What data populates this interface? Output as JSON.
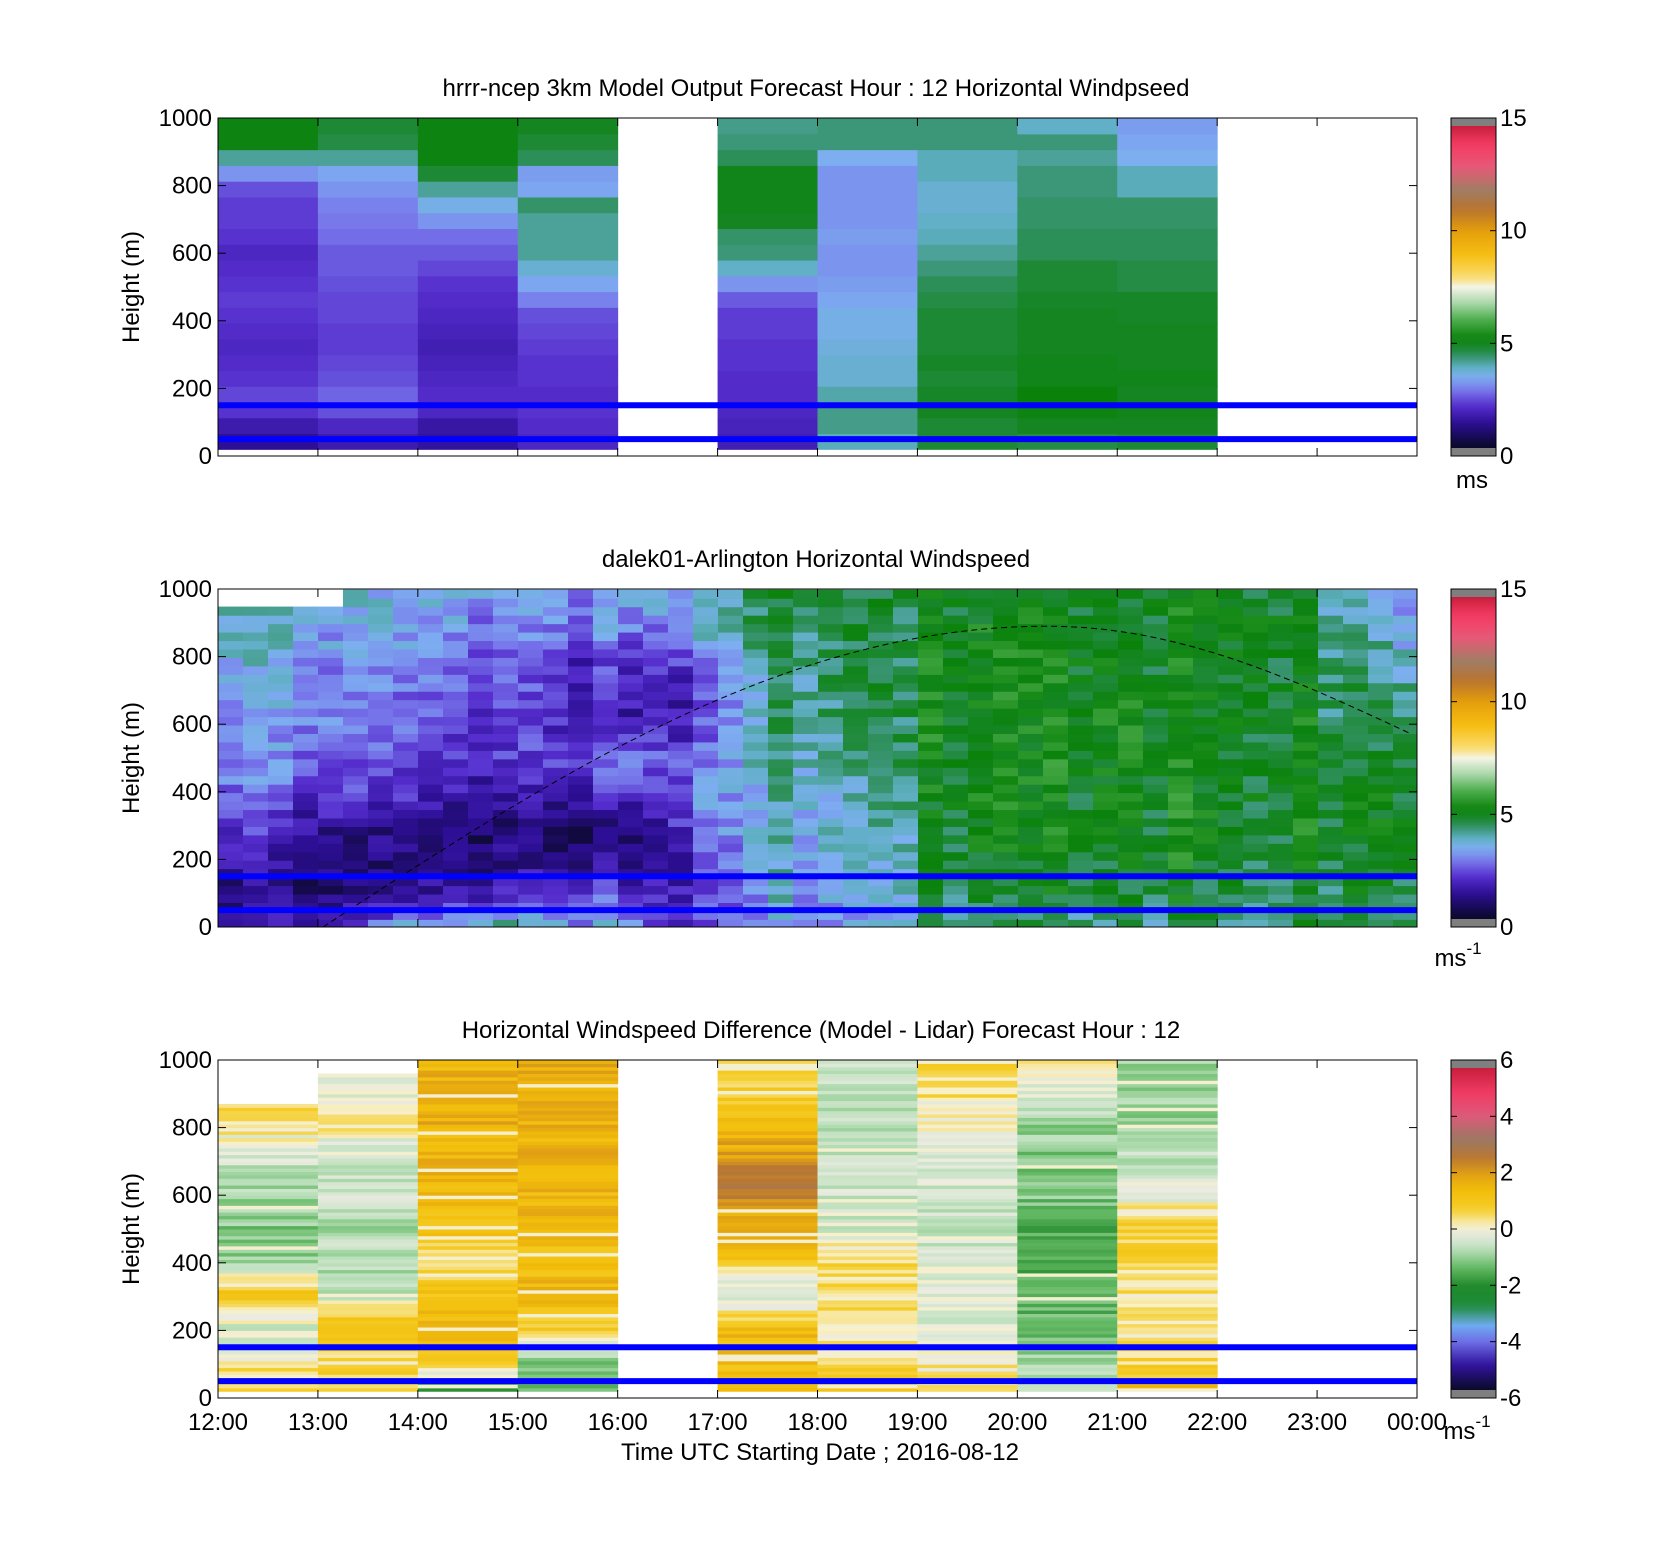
{
  "chart_data": [
    {
      "type": "heatmap",
      "title": "hrrr-ncep 3km Model Output   Forecast Hour : 12 Horizontal Windpseed",
      "ylabel": "Height (m)",
      "ylim": [
        0,
        1000
      ],
      "yticks": [
        "0",
        "200",
        "400",
        "600",
        "800",
        "1000"
      ],
      "xlim_hours": [
        12,
        24
      ],
      "colorbar": {
        "min": 0,
        "max": 15,
        "ticks": [
          "0",
          "5",
          "10",
          "15"
        ],
        "unit": "ms"
      },
      "colormap": "windspeed",
      "reference_lines_m": [
        150,
        50
      ],
      "missing_columns": [
        "16:00-17:00",
        "22:00-00:00"
      ],
      "columns": [
        {
          "t": "12:00",
          "h_top": 1000,
          "values": [
            1.2,
            1.5,
            2.0,
            2.2,
            2.0,
            1.9,
            1.8,
            1.9,
            2.0,
            2.1,
            2.0,
            1.9,
            1.8,
            2.0,
            2.1,
            2.1,
            2.3,
            3.0,
            4.0,
            5.0,
            5.0
          ]
        },
        {
          "t": "13:00",
          "h_top": 1000,
          "values": [
            1.5,
            1.8,
            2.3,
            2.5,
            2.3,
            2.2,
            2.1,
            2.1,
            2.2,
            2.2,
            2.3,
            2.4,
            2.4,
            2.6,
            2.7,
            2.8,
            3.0,
            3.2,
            4.0,
            4.5,
            4.6
          ]
        },
        {
          "t": "14:00",
          "h_top": 1000,
          "values": [
            1.3,
            1.4,
            1.8,
            1.9,
            1.8,
            1.7,
            1.6,
            1.7,
            1.8,
            1.9,
            2.0,
            2.2,
            2.4,
            2.6,
            3.0,
            3.4,
            4.0,
            4.6,
            5.0,
            5.0,
            5.0
          ]
        },
        {
          "t": "15:00",
          "h_top": 1000,
          "values": [
            1.8,
            1.9,
            2.0,
            1.9,
            2.0,
            2.0,
            2.1,
            2.2,
            2.3,
            2.8,
            3.2,
            3.6,
            4.0,
            4.0,
            4.0,
            4.3,
            3.2,
            3.1,
            4.4,
            4.6,
            4.8
          ]
        },
        {
          "t": "17:00",
          "h_top": 1000,
          "values": [
            1.6,
            1.7,
            1.8,
            1.9,
            1.9,
            2.0,
            2.0,
            2.1,
            2.1,
            2.4,
            3.0,
            3.7,
            4.2,
            4.3,
            4.8,
            4.9,
            4.9,
            4.9,
            4.4,
            4.2,
            4.1
          ]
        },
        {
          "t": "18:00",
          "h_top": 1000,
          "values": [
            3.8,
            4.1,
            4.1,
            3.9,
            3.6,
            3.6,
            3.5,
            3.4,
            3.4,
            3.2,
            3.1,
            3.0,
            3.0,
            3.1,
            3.0,
            3.0,
            3.0,
            3.0,
            3.3,
            4.2,
            4.2
          ]
        },
        {
          "t": "19:00",
          "h_top": 1000,
          "values": [
            4.6,
            4.6,
            4.8,
            4.7,
            4.6,
            4.7,
            4.6,
            4.6,
            4.6,
            4.5,
            4.4,
            4.2,
            4.0,
            3.8,
            3.7,
            3.6,
            3.6,
            3.8,
            3.8,
            4.2,
            4.2
          ]
        },
        {
          "t": "20:00",
          "h_top": 1000,
          "values": [
            4.5,
            4.8,
            5.0,
            5.1,
            4.9,
            4.9,
            4.8,
            4.8,
            4.8,
            4.7,
            4.6,
            4.6,
            4.4,
            4.4,
            4.3,
            4.3,
            4.2,
            4.2,
            4.0,
            4.2,
            3.7
          ]
        },
        {
          "t": "21:00",
          "h_top": 1000,
          "values": [
            4.6,
            4.8,
            4.9,
            4.8,
            4.9,
            4.8,
            4.8,
            4.8,
            4.7,
            4.7,
            4.5,
            4.5,
            4.4,
            4.4,
            4.3,
            4.3,
            3.8,
            3.8,
            3.3,
            3.2,
            3.1
          ]
        }
      ]
    },
    {
      "type": "heatmap",
      "title": "dalek01-Arlington  Horizontal Windspeed",
      "ylabel": "Height (m)",
      "ylim": [
        0,
        1000
      ],
      "yticks": [
        "0",
        "200",
        "400",
        "600",
        "800",
        "1000"
      ],
      "xlim_hours": [
        12,
        24
      ],
      "colorbar": {
        "min": 0,
        "max": 15,
        "ticks": [
          "0",
          "5",
          "10",
          "15"
        ],
        "unit": "ms-1"
      },
      "colormap": "windspeed",
      "reference_lines_m": [
        150,
        50
      ],
      "data_end_hour": 23.95,
      "anchor_heights_m": [
        0,
        100,
        200,
        300,
        400,
        500,
        600,
        700,
        800,
        900,
        1000
      ],
      "time_anchors": [
        {
          "hour": 12.0,
          "values": [
            1.0,
            0.9,
            1.4,
            2.2,
            2.6,
            2.8,
            3.0,
            3.2,
            3.5,
            3.6,
            3.6
          ]
        },
        {
          "hour": 13.0,
          "values": [
            1.5,
            1.0,
            0.9,
            1.5,
            2.3,
            2.7,
            3.0,
            3.0,
            3.2,
            3.4,
            3.8
          ]
        },
        {
          "hour": 14.0,
          "values": [
            3.5,
            1.3,
            0.8,
            1.0,
            1.8,
            2.2,
            2.4,
            2.6,
            2.9,
            3.2,
            3.5
          ]
        },
        {
          "hour": 15.0,
          "values": [
            4.0,
            2.0,
            1.0,
            0.8,
            1.4,
            2.0,
            2.0,
            2.2,
            2.5,
            2.8,
            3.2
          ]
        },
        {
          "hour": 16.0,
          "values": [
            3.0,
            2.0,
            1.0,
            0.8,
            2.0,
            2.6,
            1.6,
            1.4,
            2.0,
            2.8,
            3.2
          ]
        },
        {
          "hour": 16.8,
          "values": [
            2.0,
            1.6,
            1.8,
            2.4,
            2.6,
            2.4,
            1.8,
            1.8,
            2.4,
            3.2,
            3.6
          ]
        },
        {
          "hour": 17.5,
          "values": [
            3.0,
            3.4,
            3.6,
            3.8,
            3.8,
            3.9,
            4.0,
            4.2,
            4.4,
            4.6,
            4.6
          ]
        },
        {
          "hour": 18.5,
          "values": [
            3.2,
            3.6,
            3.8,
            3.8,
            4.0,
            4.4,
            4.6,
            4.6,
            4.8,
            4.8,
            4.8
          ]
        },
        {
          "hour": 19.5,
          "values": [
            4.2,
            4.6,
            4.8,
            5.0,
            5.0,
            5.0,
            5.0,
            5.0,
            5.0,
            5.0,
            4.8
          ]
        },
        {
          "hour": 21.0,
          "values": [
            4.2,
            4.6,
            4.8,
            5.0,
            5.0,
            5.1,
            5.1,
            5.0,
            5.0,
            5.0,
            4.8
          ]
        },
        {
          "hour": 22.5,
          "values": [
            4.4,
            4.6,
            4.8,
            5.0,
            5.0,
            5.0,
            5.0,
            5.0,
            5.0,
            5.2,
            5.0
          ]
        },
        {
          "hour": 23.95,
          "values": [
            4.8,
            4.8,
            4.9,
            5.0,
            5.0,
            4.8,
            4.5,
            4.2,
            3.8,
            3.4,
            3.0
          ]
        }
      ],
      "dashed_curve": {
        "start_hour": 13.05,
        "start_m": 0,
        "peak_hour": 20.3,
        "peak_m": 890,
        "end_hour": 23.95,
        "end_m": 570
      }
    },
    {
      "type": "heatmap",
      "title": "Horizontal Windspeed Difference (Model - Lidar) Forecast Hour : 12",
      "xlabel": "Time UTC  Starting Date ; 2016-08-12",
      "ylabel": "Height (m)",
      "ylim": [
        0,
        1000
      ],
      "yticks": [
        "0",
        "200",
        "400",
        "600",
        "800",
        "1000"
      ],
      "xticks": [
        "12:00",
        "13:00",
        "14:00",
        "15:00",
        "16:00",
        "17:00",
        "18:00",
        "19:00",
        "20:00",
        "21:00",
        "22:00",
        "23:00",
        "00:00"
      ],
      "colorbar": {
        "min": -6,
        "max": 6,
        "ticks": [
          "-6",
          "-4",
          "-2",
          "0",
          "2",
          "4",
          "6"
        ],
        "unit": "ms-1"
      },
      "colormap": "difference",
      "reference_lines_m": [
        150,
        50
      ],
      "columns": [
        {
          "t": "12:00",
          "h_top": 870,
          "anchors": [
            1.0,
            0.3,
            -0.5,
            1.2,
            -1.0,
            -1.2,
            -1.0,
            -0.5,
            0.3,
            0.8,
            1.5
          ]
        },
        {
          "t": "13:00",
          "h_top": 960,
          "anchors": [
            1.0,
            0.4,
            1.5,
            -0.6,
            -0.8,
            -0.8,
            -0.5,
            -0.4,
            0.2,
            -0.3,
            -0.2
          ]
        },
        {
          "t": "14:00",
          "h_top": 1000,
          "anchors": [
            -3.0,
            0.8,
            1.5,
            1.2,
            0.3,
            1.2,
            1.5,
            1.6,
            1.7,
            1.7,
            1.6
          ]
        },
        {
          "t": "15:00",
          "h_top": 1000,
          "anchors": [
            -1.5,
            -1.2,
            0.8,
            1.5,
            1.3,
            1.5,
            1.6,
            1.6,
            1.7,
            1.7,
            1.7
          ]
        },
        {
          "t": "17:00",
          "h_top": 1000,
          "anchors": [
            1.5,
            1.3,
            1.4,
            -0.8,
            1.0,
            1.6,
            2.6,
            2.2,
            1.5,
            0.8,
            0.2
          ]
        },
        {
          "t": "18:00",
          "h_top": 1000,
          "anchors": [
            1.0,
            0.5,
            0.3,
            0.4,
            0.6,
            -0.4,
            -0.5,
            -0.6,
            -0.6,
            -0.6,
            -0.4
          ]
        },
        {
          "t": "19:00",
          "h_top": 1000,
          "anchors": [
            0.6,
            0.2,
            -0.3,
            -0.2,
            -0.3,
            -0.5,
            -0.4,
            -0.4,
            -0.1,
            0.4,
            0.7
          ]
        },
        {
          "t": "20:00",
          "h_top": 1000,
          "anchors": [
            -0.5,
            -1.0,
            -1.4,
            -1.6,
            -1.8,
            -1.5,
            -1.2,
            -1.2,
            -1.0,
            -0.4,
            0.5
          ]
        },
        {
          "t": "21:00",
          "h_top": 1000,
          "anchors": [
            1.6,
            0.6,
            0.2,
            0.4,
            0.5,
            0.9,
            -0.3,
            -0.6,
            -0.9,
            -1.0,
            -1.2
          ]
        }
      ]
    }
  ]
}
